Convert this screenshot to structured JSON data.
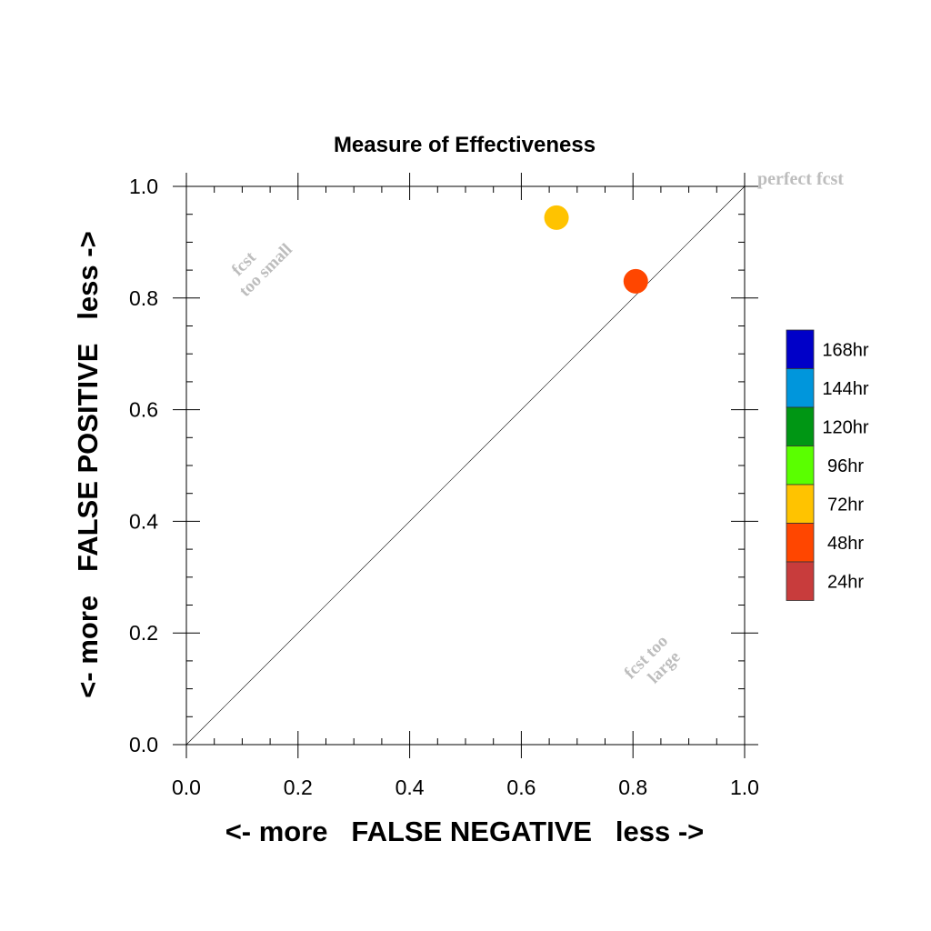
{
  "chart_data": {
    "type": "scatter",
    "title": "Measure of Effectiveness",
    "xlabel": "<- more   FALSE NEGATIVE   less ->",
    "ylabel": "<- more   FALSE POSITIVE   less ->",
    "xlim": [
      0,
      1
    ],
    "ylim": [
      0,
      1
    ],
    "x_ticks": [
      "0.0",
      "0.2",
      "0.4",
      "0.6",
      "0.8",
      "1.0"
    ],
    "y_ticks": [
      "0.0",
      "0.2",
      "0.4",
      "0.6",
      "0.8",
      "1.0"
    ],
    "grid": false,
    "diagonal_reference_line": true,
    "annotations": {
      "perfect": "perfect fcst",
      "too_small": [
        "fcst",
        "too small"
      ],
      "too_large": [
        "fcst too",
        "large"
      ]
    },
    "legend_position": "right",
    "legend": [
      {
        "label": "168hr",
        "color": "#0000c8"
      },
      {
        "label": "144hr",
        "color": "#0096dc"
      },
      {
        "label": "120hr",
        "color": "#009614"
      },
      {
        "label": "96hr",
        "color": "#5aff00"
      },
      {
        "label": "72hr",
        "color": "#ffc300"
      },
      {
        "label": "48hr",
        "color": "#ff4600"
      },
      {
        "label": "24hr",
        "color": "#c83c3c"
      }
    ],
    "points": [
      {
        "series": "72hr",
        "x": 0.663,
        "y": 0.944,
        "color": "#ffc300"
      },
      {
        "series": "48hr",
        "x": 0.805,
        "y": 0.83,
        "color": "#ff4600"
      }
    ]
  }
}
